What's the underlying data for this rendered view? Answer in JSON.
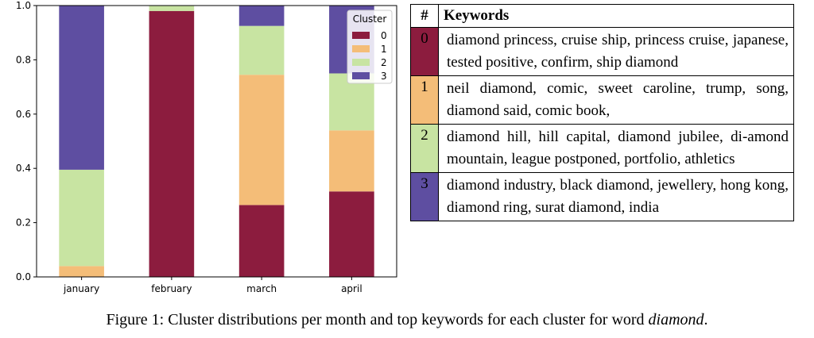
{
  "chart_data": {
    "type": "bar",
    "stacked": true,
    "categories": [
      "january",
      "february",
      "march",
      "april"
    ],
    "series": [
      {
        "name": "0",
        "color": "#8c1c3e",
        "values": [
          0.0,
          0.98,
          0.265,
          0.315
        ]
      },
      {
        "name": "1",
        "color": "#f4bd78",
        "values": [
          0.04,
          0.0,
          0.48,
          0.225
        ]
      },
      {
        "name": "2",
        "color": "#c8e4a2",
        "values": [
          0.355,
          0.02,
          0.18,
          0.21
        ]
      },
      {
        "name": "3",
        "color": "#5e4ea1",
        "values": [
          0.605,
          0.0,
          0.075,
          0.25
        ]
      }
    ],
    "ylim": [
      0,
      1.0
    ],
    "yticks": [
      "0.0",
      "0.2",
      "0.4",
      "0.6",
      "0.8",
      "1.0"
    ],
    "legend": {
      "title": "Cluster",
      "position": "top-right"
    },
    "grid": false
  },
  "table": {
    "headers": [
      "#",
      "Keywords"
    ],
    "rows": [
      {
        "num": "0",
        "color": "#8c1c3e",
        "keywords": "diamond princess, cruise ship, princess cruise, japanese, tested positive, confirm, ship diamond"
      },
      {
        "num": "1",
        "color": "#f4bd78",
        "keywords": "neil diamond, comic, sweet caroline, trump, song, diamond said, comic book,"
      },
      {
        "num": "2",
        "color": "#c8e4a2",
        "keywords": "diamond hill, hill capital, diamond jubilee, di-amond mountain, league postponed, portfolio, athletics"
      },
      {
        "num": "3",
        "color": "#5e4ea1",
        "keywords": "diamond industry, black diamond, jewellery, hong kong, diamond ring, surat diamond, india"
      }
    ]
  },
  "caption": {
    "text": "Figure 1: Cluster distributions per month and top keywords for each cluster for word ",
    "emphasis": "diamond",
    "end": "."
  }
}
